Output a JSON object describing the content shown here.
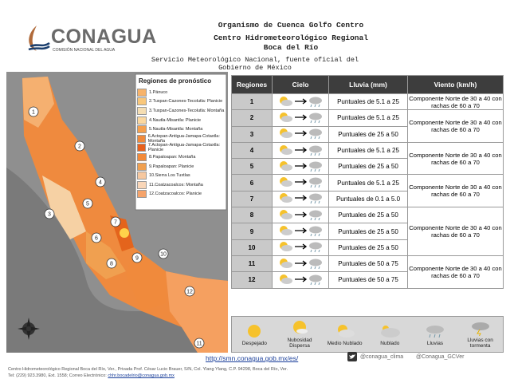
{
  "header": {
    "logo_name": "CONAGUA",
    "logo_subtitle": "COMISIÓN NACIONAL DEL AGUA",
    "lines": [
      "Organismo de Cuenca Golfo Centro",
      "Centro Hidrometeorológico Regional",
      "Boca del Río",
      "Servicio Meteorológico Nacional, fuente oficial del Gobierno de México"
    ]
  },
  "map": {
    "legend_title": "Regiones de pronóstico",
    "regions": [
      "1.Pánuco",
      "2.Tuxpan-Cazones-Tecolutla: Planicie",
      "3.Tuxpan-Cazones-Tecolutla: Montaña",
      "4.Nautla-Misantla: Planicie",
      "5.Nautla-Misantla: Montaña",
      "6.Actopan-Antigua-Jamapa-Cotaxtla: Montaña",
      "7.Actopan-Antigua-Jamapa-Cotaxtla: Planicie",
      "8.Papaloapan: Montaña",
      "9.Papaloapan: Planicie",
      "10.Sierra Los Tuxtlas",
      "11.Coatzacoalcos: Montaña",
      "12.Coatzacoalcos: Planicie"
    ],
    "labels": [
      "1",
      "2",
      "3",
      "4",
      "5",
      "6",
      "7",
      "8",
      "9",
      "10",
      "11",
      "12"
    ]
  },
  "table": {
    "columns": [
      "Regiones",
      "Cielo",
      "Lluvia (mm)",
      "Viento (km/h)"
    ],
    "rows": [
      {
        "region": "1",
        "lluvia": "Puntuales de 5.1 a 25",
        "viento": "Componente Norte de 30 a 40 con rachas de 60 a 70"
      },
      {
        "region": "2",
        "lluvia": "Puntuales de 5.1 a 25",
        "viento": "Componente Norte de 30 a 40 con rachas de 60 a 70"
      },
      {
        "region": "3",
        "lluvia": "Puntuales de 25 a 50",
        "viento": null
      },
      {
        "region": "4",
        "lluvia": "Puntuales de 5.1 a 25",
        "viento": "Componente Norte de 30 a 40 con rachas de 60 a 70"
      },
      {
        "region": "5",
        "lluvia": "Puntuales de 25 a 50",
        "viento": null
      },
      {
        "region": "6",
        "lluvia": "Puntuales de 5.1 a 25",
        "viento": "Componente Norte de 30 a 40 con rachas de 60 a 70"
      },
      {
        "region": "7",
        "lluvia": "Puntuales de 0.1 a 5.0",
        "viento": null
      },
      {
        "region": "8",
        "lluvia": "Puntuales de 25 a 50",
        "viento": "Componente Norte de 30 a 40 con rachas de 60 a 70"
      },
      {
        "region": "9",
        "lluvia": "Puntuales de 25 a 50",
        "viento": null
      },
      {
        "region": "10",
        "lluvia": "Puntuales de 25 a 50",
        "viento": null
      },
      {
        "region": "11",
        "lluvia": "Puntuales de 50 a 75",
        "viento": "Componente Norte de 30 a 40 con rachas de 60 a 70"
      },
      {
        "region": "12",
        "lluvia": "Puntuales de 50 a 75",
        "viento": null
      }
    ]
  },
  "sky_legend": [
    "Despejado",
    "Nubosidad Dispersa",
    "Medio Nublado",
    "Nublado",
    "Lluvias",
    "Lluvias con tormenta"
  ],
  "footer": {
    "url": "http://smn.conagua.gob.mx/es/",
    "twitter_1": "@conagua_clima",
    "twitter_2": "@Conagua_GCVer",
    "address": "Centro Hidrometeorológico Regional Boca del Río, Ver., Privada Prof. César Lucio Brauer, S/N, Col. Ylang Ylang, C.P. 94298, Boca del Río, Ver.",
    "contact": "Tel: (229) 923.3980, Ext. 1558; Correo Electrónico:",
    "email": "chhr.bocadelrio@conagua.gob.mx"
  }
}
